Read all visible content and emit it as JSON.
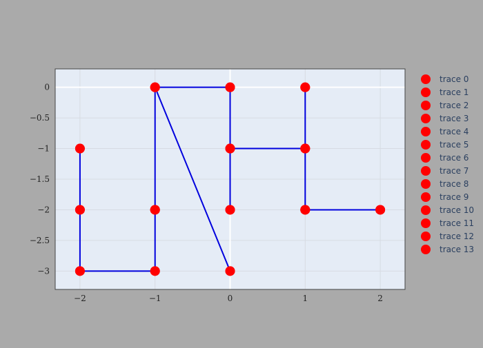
{
  "colors": {
    "paper_bg": "#aaaaaa",
    "plot_bg": "#e5ecf6",
    "grid": "#d7dbe3",
    "zeroline": "#ffffff",
    "marker": "#ff0000",
    "line": "#0000dd",
    "legend_text": "#2a3f5f"
  },
  "chart_data": {
    "type": "scatter",
    "title": "",
    "xlabel": "",
    "ylabel": "",
    "xlim": [
      -2.33,
      2.33
    ],
    "ylim": [
      -3.3,
      0.3
    ],
    "grid": true,
    "legend_position": "right",
    "x_ticks": [
      {
        "value": -2,
        "label": "−2"
      },
      {
        "value": -1,
        "label": "−1"
      },
      {
        "value": 0,
        "label": "0"
      },
      {
        "value": 1,
        "label": "1"
      },
      {
        "value": 2,
        "label": "2"
      }
    ],
    "y_ticks": [
      {
        "value": 0,
        "label": "0"
      },
      {
        "value": -0.5,
        "label": "−0.5"
      },
      {
        "value": -1,
        "label": "−1"
      },
      {
        "value": -1.5,
        "label": "−1.5"
      },
      {
        "value": -2,
        "label": "−2"
      },
      {
        "value": -2.5,
        "label": "−2.5"
      },
      {
        "value": -3,
        "label": "−3"
      }
    ],
    "series": [
      {
        "name": "trace 0",
        "mode": "lines+markers",
        "x": [
          -2,
          -2
        ],
        "y": [
          -1,
          -2
        ]
      },
      {
        "name": "trace 1",
        "mode": "lines+markers",
        "x": [
          -2,
          -2
        ],
        "y": [
          -2,
          -3
        ]
      },
      {
        "name": "trace 2",
        "mode": "lines+markers",
        "x": [
          -2,
          -1
        ],
        "y": [
          -3,
          -3
        ]
      },
      {
        "name": "trace 3",
        "mode": "lines+markers",
        "x": [
          -1,
          -1
        ],
        "y": [
          -3,
          -2
        ]
      },
      {
        "name": "trace 4",
        "mode": "lines+markers",
        "x": [
          -1,
          -1
        ],
        "y": [
          -2,
          0
        ]
      },
      {
        "name": "trace 5",
        "mode": "lines+markers",
        "x": [
          -1,
          0
        ],
        "y": [
          0,
          0
        ]
      },
      {
        "name": "trace 6",
        "mode": "lines+markers",
        "x": [
          -1,
          0
        ],
        "y": [
          0,
          -3
        ]
      },
      {
        "name": "trace 7",
        "mode": "lines+markers",
        "x": [
          0,
          0
        ],
        "y": [
          0,
          -1
        ]
      },
      {
        "name": "trace 8",
        "mode": "lines+markers",
        "x": [
          0,
          0
        ],
        "y": [
          -1,
          -2
        ]
      },
      {
        "name": "trace 9",
        "mode": "lines+markers",
        "x": [
          0,
          1
        ],
        "y": [
          -1,
          -1
        ]
      },
      {
        "name": "trace 10",
        "mode": "lines+markers",
        "x": [
          1,
          1
        ],
        "y": [
          -1,
          0
        ]
      },
      {
        "name": "trace 11",
        "mode": "lines+markers",
        "x": [
          1,
          1
        ],
        "y": [
          -1,
          -2
        ]
      },
      {
        "name": "trace 12",
        "mode": "lines+markers",
        "x": [
          1,
          2
        ],
        "y": [
          -2,
          -2
        ]
      },
      {
        "name": "trace 13",
        "mode": "markers",
        "x": [
          -2,
          -1,
          0,
          0,
          1,
          1,
          2
        ],
        "y": [
          -1,
          -2,
          -2,
          -3,
          0,
          -2,
          -2
        ]
      }
    ]
  }
}
